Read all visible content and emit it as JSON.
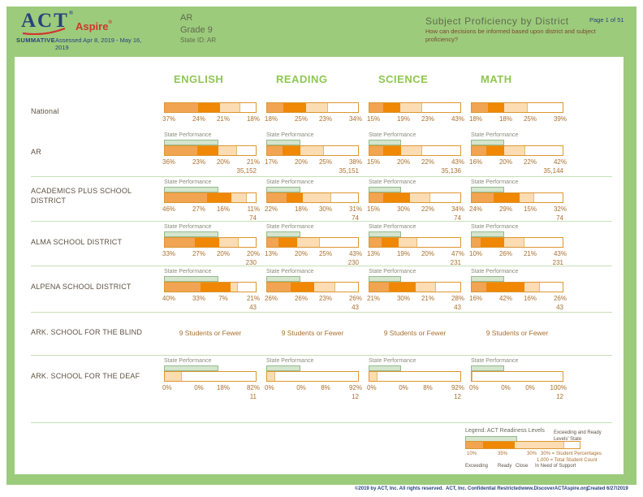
{
  "header": {
    "logo_act": "ACT",
    "logo_aspire": "Aspire",
    "reg": "®",
    "summative": "SUMMATIVE",
    "assessed": "Assessed Apr 8, 2019 - May 16, 2019",
    "state": "AR",
    "grade": "Grade 9",
    "state_id": "State ID: AR",
    "title": "Subject Proficiency by District",
    "subtitle": "How can decisions be informed based upon district and subject proficiency?",
    "page": "Page 1 of 51"
  },
  "columns": [
    "ENGLISH",
    "READING",
    "SCIENCE",
    "MATH"
  ],
  "levels": [
    "Exceeding",
    "Ready",
    "Close",
    "In Need of Support"
  ],
  "state_performance": {
    "label": "State Performance",
    "pcts": [
      59,
      37,
      35,
      36
    ]
  },
  "rows": [
    {
      "label": "National",
      "state_perf": false,
      "cells": [
        {
          "values": [
            37,
            24,
            21,
            18
          ]
        },
        {
          "values": [
            18,
            25,
            23,
            34
          ]
        },
        {
          "values": [
            15,
            19,
            23,
            43
          ]
        },
        {
          "values": [
            18,
            18,
            25,
            39
          ]
        }
      ]
    },
    {
      "label": "AR",
      "state_perf": true,
      "cells": [
        {
          "values": [
            36,
            23,
            20,
            21
          ],
          "count": "35,152"
        },
        {
          "values": [
            17,
            20,
            25,
            38
          ],
          "count": "35,151"
        },
        {
          "values": [
            15,
            20,
            22,
            43
          ],
          "count": "35,136"
        },
        {
          "values": [
            16,
            20,
            22,
            42
          ],
          "count": "35,144"
        }
      ]
    },
    {
      "label": "ACADEMICS PLUS SCHOOL DISTRICT",
      "state_perf": true,
      "cells": [
        {
          "values": [
            46,
            27,
            16,
            11
          ],
          "count": "74"
        },
        {
          "values": [
            22,
            18,
            30,
            31
          ],
          "count": "74"
        },
        {
          "values": [
            15,
            30,
            22,
            34
          ],
          "count": "74"
        },
        {
          "values": [
            24,
            29,
            15,
            32
          ],
          "count": "74"
        }
      ]
    },
    {
      "label": "ALMA SCHOOL DISTRICT",
      "state_perf": true,
      "cells": [
        {
          "values": [
            33,
            27,
            20,
            20
          ],
          "count": "230"
        },
        {
          "values": [
            13,
            20,
            25,
            43
          ],
          "count": "230"
        },
        {
          "values": [
            13,
            19,
            20,
            47
          ],
          "count": "231"
        },
        {
          "values": [
            10,
            26,
            21,
            43
          ],
          "count": "231"
        }
      ]
    },
    {
      "label": "ALPENA SCHOOL DISTRICT",
      "state_perf": true,
      "cells": [
        {
          "values": [
            40,
            33,
            7,
            21
          ],
          "count": "43"
        },
        {
          "values": [
            26,
            26,
            23,
            26
          ],
          "count": "43"
        },
        {
          "values": [
            21,
            30,
            21,
            28
          ],
          "count": "43"
        },
        {
          "values": [
            16,
            42,
            16,
            26
          ],
          "count": "43"
        }
      ]
    },
    {
      "label": "ARK. SCHOOL FOR THE BLIND",
      "suppressed": true,
      "suppressed_text": "9 Students or Fewer"
    },
    {
      "label": "ARK. SCHOOL FOR THE DEAF",
      "state_perf": true,
      "cells": [
        {
          "values": [
            0,
            0,
            18,
            82
          ],
          "count": "11"
        },
        {
          "values": [
            0,
            0,
            8,
            92
          ],
          "count": "12"
        },
        {
          "values": [
            0,
            0,
            8,
            92
          ],
          "count": "12"
        },
        {
          "values": [
            0,
            0,
            0,
            100
          ],
          "count": "12"
        }
      ]
    }
  ],
  "legend": {
    "title": "Legend: ACT Readiness Levels",
    "sample_values": [
      15,
      28,
      43,
      14
    ],
    "sample_ticks": [
      "10%",
      "35%",
      "30%"
    ],
    "state_note": "Exceeding and Ready Levels' State",
    "pct_note": "30% = Student Percentages",
    "count_note": "1,000 = Total Student Count"
  },
  "footer": {
    "copyright": "©2019 by ACT, Inc. All rights reserved.",
    "confidential": "ACT, Inc. Confidential Restricted",
    "website": "www.DiscoverACTAspire.org",
    "created": "Created 6/27/2019"
  },
  "colors": {
    "frame_green": "#9CCB7C",
    "accent_green": "#8FC753",
    "navy": "#27427E",
    "logo_red": "#D2342E",
    "exceeding": "#F1A452",
    "ready": "#F08705",
    "close": "#FBDCB3",
    "support": "#FFFFFF",
    "bar_border": "#DC9732",
    "state_fill": "#D5E5CE",
    "state_border": "#94BB8C",
    "pct_text": "#A9702E",
    "label_text": "#5E5244",
    "sp_label_text": "#8B8B7D",
    "separator": "#C7E0B6",
    "olive_text": "#606B4D",
    "subtitle_text": "#7B4930"
  }
}
